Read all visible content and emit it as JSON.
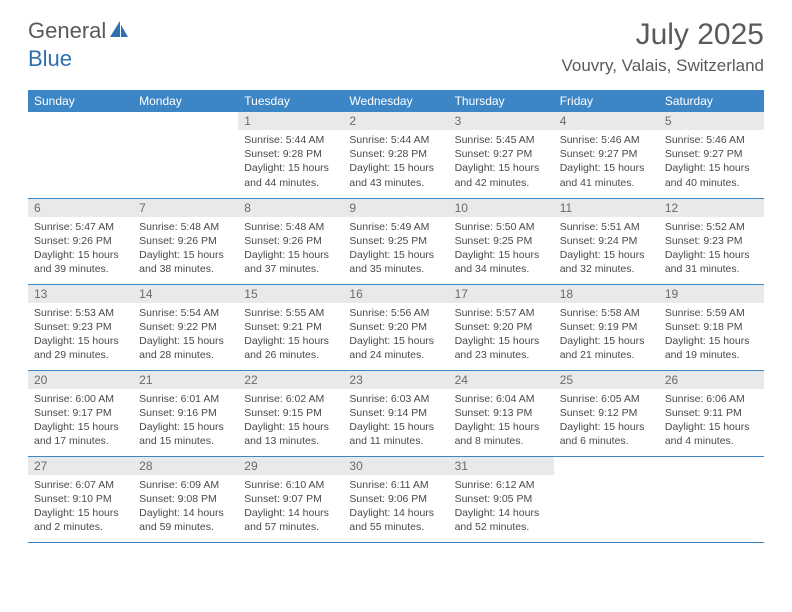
{
  "brand": {
    "name1": "General",
    "name2": "Blue"
  },
  "title": "July 2025",
  "location": "Vouvry, Valais, Switzerland",
  "colors": {
    "header_bg": "#3d86c6",
    "header_text": "#ffffff",
    "daynum_bg": "#e8e9ea",
    "daynum_text": "#6a6a6a",
    "body_text": "#4a4a4a",
    "title_text": "#5a5a5a",
    "logo_blue": "#2f6fb0",
    "border": "#3d86c6"
  },
  "weekdays": [
    "Sunday",
    "Monday",
    "Tuesday",
    "Wednesday",
    "Thursday",
    "Friday",
    "Saturday"
  ],
  "first_weekday_index": 2,
  "days": [
    {
      "n": 1,
      "sunrise": "5:44 AM",
      "sunset": "9:28 PM",
      "daylight": "15 hours and 44 minutes."
    },
    {
      "n": 2,
      "sunrise": "5:44 AM",
      "sunset": "9:28 PM",
      "daylight": "15 hours and 43 minutes."
    },
    {
      "n": 3,
      "sunrise": "5:45 AM",
      "sunset": "9:27 PM",
      "daylight": "15 hours and 42 minutes."
    },
    {
      "n": 4,
      "sunrise": "5:46 AM",
      "sunset": "9:27 PM",
      "daylight": "15 hours and 41 minutes."
    },
    {
      "n": 5,
      "sunrise": "5:46 AM",
      "sunset": "9:27 PM",
      "daylight": "15 hours and 40 minutes."
    },
    {
      "n": 6,
      "sunrise": "5:47 AM",
      "sunset": "9:26 PM",
      "daylight": "15 hours and 39 minutes."
    },
    {
      "n": 7,
      "sunrise": "5:48 AM",
      "sunset": "9:26 PM",
      "daylight": "15 hours and 38 minutes."
    },
    {
      "n": 8,
      "sunrise": "5:48 AM",
      "sunset": "9:26 PM",
      "daylight": "15 hours and 37 minutes."
    },
    {
      "n": 9,
      "sunrise": "5:49 AM",
      "sunset": "9:25 PM",
      "daylight": "15 hours and 35 minutes."
    },
    {
      "n": 10,
      "sunrise": "5:50 AM",
      "sunset": "9:25 PM",
      "daylight": "15 hours and 34 minutes."
    },
    {
      "n": 11,
      "sunrise": "5:51 AM",
      "sunset": "9:24 PM",
      "daylight": "15 hours and 32 minutes."
    },
    {
      "n": 12,
      "sunrise": "5:52 AM",
      "sunset": "9:23 PM",
      "daylight": "15 hours and 31 minutes."
    },
    {
      "n": 13,
      "sunrise": "5:53 AM",
      "sunset": "9:23 PM",
      "daylight": "15 hours and 29 minutes."
    },
    {
      "n": 14,
      "sunrise": "5:54 AM",
      "sunset": "9:22 PM",
      "daylight": "15 hours and 28 minutes."
    },
    {
      "n": 15,
      "sunrise": "5:55 AM",
      "sunset": "9:21 PM",
      "daylight": "15 hours and 26 minutes."
    },
    {
      "n": 16,
      "sunrise": "5:56 AM",
      "sunset": "9:20 PM",
      "daylight": "15 hours and 24 minutes."
    },
    {
      "n": 17,
      "sunrise": "5:57 AM",
      "sunset": "9:20 PM",
      "daylight": "15 hours and 23 minutes."
    },
    {
      "n": 18,
      "sunrise": "5:58 AM",
      "sunset": "9:19 PM",
      "daylight": "15 hours and 21 minutes."
    },
    {
      "n": 19,
      "sunrise": "5:59 AM",
      "sunset": "9:18 PM",
      "daylight": "15 hours and 19 minutes."
    },
    {
      "n": 20,
      "sunrise": "6:00 AM",
      "sunset": "9:17 PM",
      "daylight": "15 hours and 17 minutes."
    },
    {
      "n": 21,
      "sunrise": "6:01 AM",
      "sunset": "9:16 PM",
      "daylight": "15 hours and 15 minutes."
    },
    {
      "n": 22,
      "sunrise": "6:02 AM",
      "sunset": "9:15 PM",
      "daylight": "15 hours and 13 minutes."
    },
    {
      "n": 23,
      "sunrise": "6:03 AM",
      "sunset": "9:14 PM",
      "daylight": "15 hours and 11 minutes."
    },
    {
      "n": 24,
      "sunrise": "6:04 AM",
      "sunset": "9:13 PM",
      "daylight": "15 hours and 8 minutes."
    },
    {
      "n": 25,
      "sunrise": "6:05 AM",
      "sunset": "9:12 PM",
      "daylight": "15 hours and 6 minutes."
    },
    {
      "n": 26,
      "sunrise": "6:06 AM",
      "sunset": "9:11 PM",
      "daylight": "15 hours and 4 minutes."
    },
    {
      "n": 27,
      "sunrise": "6:07 AM",
      "sunset": "9:10 PM",
      "daylight": "15 hours and 2 minutes."
    },
    {
      "n": 28,
      "sunrise": "6:09 AM",
      "sunset": "9:08 PM",
      "daylight": "14 hours and 59 minutes."
    },
    {
      "n": 29,
      "sunrise": "6:10 AM",
      "sunset": "9:07 PM",
      "daylight": "14 hours and 57 minutes."
    },
    {
      "n": 30,
      "sunrise": "6:11 AM",
      "sunset": "9:06 PM",
      "daylight": "14 hours and 55 minutes."
    },
    {
      "n": 31,
      "sunrise": "6:12 AM",
      "sunset": "9:05 PM",
      "daylight": "14 hours and 52 minutes."
    }
  ],
  "labels": {
    "sunrise": "Sunrise:",
    "sunset": "Sunset:",
    "daylight": "Daylight:"
  }
}
